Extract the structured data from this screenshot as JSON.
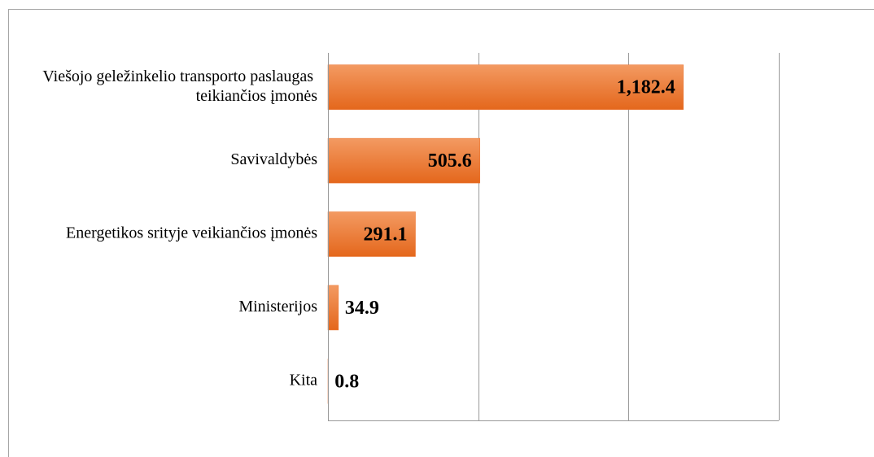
{
  "chart_data": {
    "type": "barh",
    "categories": [
      "Viešojo geležinkelio transporto paslaugas teikiančios įmonės",
      "Savivaldybės",
      "Energetikos srityje veikiančios įmonės",
      "Ministerijos",
      "Kita"
    ],
    "values": [
      1182.4,
      505.6,
      291.1,
      34.9,
      0.8
    ],
    "value_labels": [
      "1,182.4",
      "505.6",
      "291.1",
      "34.9",
      "0.8"
    ],
    "color": "#ec7633",
    "xlim": [
      0,
      1500
    ],
    "xticks": [
      0,
      500,
      1000,
      1500
    ],
    "grid": true
  }
}
